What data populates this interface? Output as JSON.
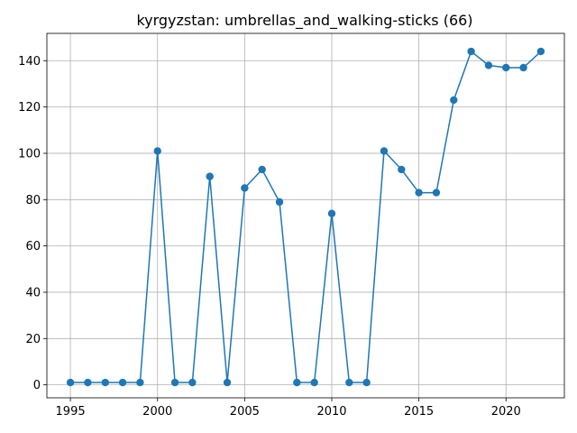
{
  "chart_data": {
    "type": "line",
    "title": "kyrgyzstan: umbrellas_and_walking-sticks (66)",
    "xlabel": "",
    "ylabel": "",
    "xlim": [
      1993.65,
      2023.35
    ],
    "ylim": [
      -5.6,
      151.8
    ],
    "x_ticks": [
      1995,
      2000,
      2005,
      2010,
      2015,
      2020
    ],
    "y_ticks": [
      0,
      20,
      40,
      60,
      80,
      100,
      120,
      140
    ],
    "grid": true,
    "line_color": "#1f77b4",
    "series": [
      {
        "x": [
          1995,
          1996,
          1997,
          1998,
          1999,
          2000,
          2001,
          2002,
          2003,
          2004,
          2005,
          2006,
          2007,
          2008,
          2009,
          2010,
          2011,
          2012,
          2013,
          2014,
          2015,
          2016,
          2017,
          2018,
          2019,
          2020,
          2021,
          2022
        ],
        "values": [
          1,
          1,
          1,
          1,
          1,
          101,
          1,
          1,
          90,
          1,
          85,
          93,
          79,
          1,
          1,
          74,
          1,
          1,
          101,
          93,
          83,
          83,
          123,
          144,
          138,
          137,
          137,
          144
        ]
      }
    ]
  }
}
